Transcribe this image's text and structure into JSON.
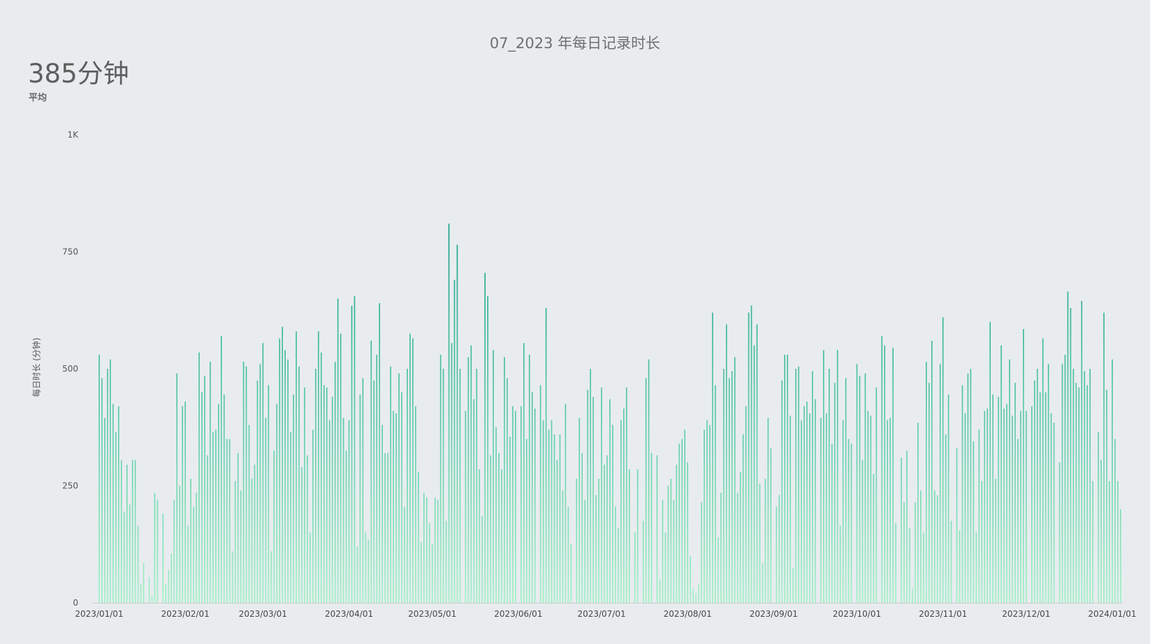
{
  "chart_data": {
    "type": "bar",
    "title": "07_2023 年每日记录时长",
    "kpi": {
      "value": "385分钟",
      "label": "平均"
    },
    "ylabel": "每日时长 (分钟)",
    "xlabel": "",
    "ylim": [
      0,
      1000
    ],
    "yticks": [
      0,
      250,
      500,
      750,
      1000
    ],
    "ytick_labels": [
      "0",
      "250",
      "500",
      "750",
      "1K"
    ],
    "x_start": "2023/01/01",
    "x_end": "2024/01/01",
    "xtick_labels": [
      "2023/01/01",
      "2023/02/01",
      "2023/03/01",
      "2023/04/01",
      "2023/05/01",
      "2023/06/01",
      "2023/07/01",
      "2023/08/01",
      "2023/09/01",
      "2023/10/01",
      "2023/11/01",
      "2023/12/01",
      "2024/01/01"
    ],
    "grid": false,
    "legend": "none",
    "colors": {
      "bar_top": "#0e9e84",
      "bar_bottom": "#9ef2c4",
      "axis": "#cccccc"
    },
    "values": [
      530,
      480,
      395,
      500,
      520,
      425,
      365,
      420,
      305,
      195,
      295,
      210,
      305,
      305,
      165,
      40,
      85,
      0,
      55,
      15,
      235,
      220,
      0,
      190,
      40,
      70,
      105,
      220,
      490,
      250,
      420,
      430,
      165,
      265,
      205,
      235,
      535,
      450,
      485,
      315,
      515,
      365,
      370,
      425,
      570,
      445,
      350,
      350,
      110,
      260,
      320,
      240,
      515,
      505,
      380,
      265,
      295,
      475,
      510,
      555,
      395,
      465,
      110,
      325,
      425,
      565,
      590,
      540,
      520,
      365,
      445,
      580,
      505,
      290,
      460,
      315,
      150,
      370,
      500,
      580,
      535,
      465,
      460,
      390,
      440,
      515,
      650,
      575,
      395,
      325,
      390,
      635,
      655,
      120,
      445,
      480,
      150,
      135,
      560,
      475,
      530,
      640,
      380,
      320,
      320,
      505,
      410,
      405,
      490,
      450,
      205,
      500,
      575,
      565,
      420,
      280,
      130,
      235,
      225,
      170,
      125,
      225,
      220,
      530,
      500,
      175,
      810,
      555,
      690,
      765,
      500,
      0,
      410,
      525,
      550,
      435,
      500,
      285,
      185,
      705,
      655,
      315,
      540,
      375,
      320,
      285,
      525,
      480,
      355,
      420,
      410,
      0,
      420,
      555,
      350,
      530,
      450,
      415,
      0,
      465,
      390,
      630,
      370,
      390,
      360,
      305,
      360,
      240,
      425,
      205,
      125,
      0,
      265,
      395,
      320,
      220,
      455,
      500,
      440,
      230,
      265,
      460,
      295,
      315,
      435,
      380,
      205,
      160,
      390,
      415,
      460,
      285,
      0,
      150,
      285,
      0,
      175,
      480,
      520,
      320,
      0,
      315,
      50,
      220,
      150,
      250,
      265,
      220,
      295,
      340,
      350,
      370,
      300,
      100,
      30,
      20,
      40,
      215,
      370,
      390,
      380,
      620,
      465,
      140,
      235,
      500,
      595,
      480,
      495,
      525,
      235,
      280,
      360,
      420,
      620,
      635,
      550,
      595,
      255,
      85,
      265,
      395,
      330,
      0,
      205,
      230,
      475,
      530,
      530,
      400,
      75,
      500,
      505,
      390,
      420,
      430,
      405,
      495,
      435,
      0,
      395,
      540,
      405,
      500,
      340,
      470,
      540,
      165,
      390,
      480,
      350,
      340,
      0,
      510,
      485,
      305,
      490,
      410,
      400,
      275,
      460,
      0,
      570,
      550,
      390,
      395,
      545,
      170,
      0,
      310,
      215,
      325,
      160,
      30,
      215,
      385,
      240,
      150,
      515,
      470,
      560,
      240,
      230,
      510,
      610,
      360,
      445,
      175,
      0,
      330,
      155,
      465,
      405,
      490,
      500,
      345,
      150,
      370,
      260,
      410,
      415,
      600,
      445,
      265,
      440,
      550,
      415,
      425,
      520,
      400,
      470,
      350,
      410,
      585,
      410,
      0,
      420,
      475,
      500,
      450,
      565,
      450,
      510,
      405,
      385,
      0,
      300,
      510,
      530,
      665,
      630,
      500,
      470,
      460,
      645,
      495,
      465,
      500,
      260,
      0,
      365,
      305,
      620,
      455,
      260,
      520,
      350,
      260,
      200
    ]
  }
}
